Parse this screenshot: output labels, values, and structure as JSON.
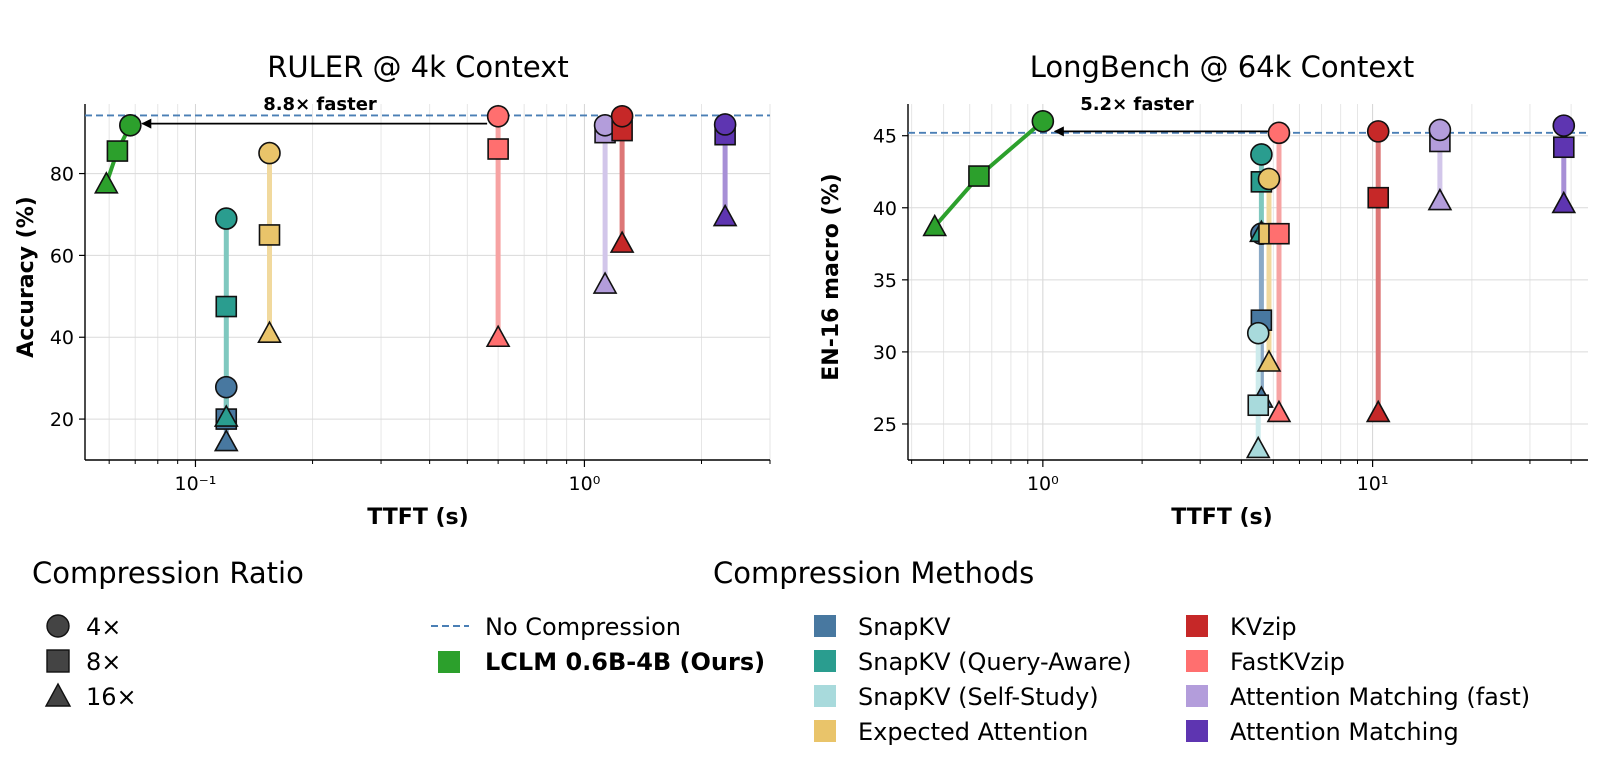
{
  "chart_data": [
    {
      "type": "scatter",
      "title": "RULER @ 4k Context",
      "xlabel": "TTFT (s)",
      "ylabel": "Accuracy (%)",
      "xscale": "log",
      "xlim": [
        0.052,
        3.0
      ],
      "ylim": [
        10,
        97
      ],
      "yticks": [
        20,
        40,
        60,
        80
      ],
      "xticks": [
        {
          "value": 0.1,
          "label": "10⁻¹"
        },
        {
          "value": 1,
          "label": "10⁰"
        }
      ],
      "grid": true,
      "baseline": 94.2,
      "annotation": {
        "text": "8.8× faster",
        "from_x": 0.6,
        "to_x": 0.068,
        "y": 92.2
      },
      "series": [
        {
          "key": "snapkv",
          "points": [
            {
              "x": 0.12,
              "y": 27.8,
              "ratio": "4x"
            },
            {
              "x": 0.12,
              "y": 20.0,
              "ratio": "8x"
            },
            {
              "x": 0.12,
              "y": 14.5,
              "ratio": "16x"
            }
          ]
        },
        {
          "key": "snapkv_qa",
          "points": [
            {
              "x": 0.12,
              "y": 69.0,
              "ratio": "4x"
            },
            {
              "x": 0.12,
              "y": 47.5,
              "ratio": "8x"
            },
            {
              "x": 0.12,
              "y": 20.5,
              "ratio": "16x"
            }
          ]
        },
        {
          "key": "expected",
          "points": [
            {
              "x": 0.155,
              "y": 85.0,
              "ratio": "4x"
            },
            {
              "x": 0.155,
              "y": 65.0,
              "ratio": "8x"
            },
            {
              "x": 0.155,
              "y": 41.0,
              "ratio": "16x"
            }
          ]
        },
        {
          "key": "fastkvzip",
          "points": [
            {
              "x": 0.6,
              "y": 94.0,
              "ratio": "4x"
            },
            {
              "x": 0.6,
              "y": 86.0,
              "ratio": "8x"
            },
            {
              "x": 0.6,
              "y": 40.0,
              "ratio": "16x"
            }
          ]
        },
        {
          "key": "am_fast",
          "points": [
            {
              "x": 1.13,
              "y": 91.8,
              "ratio": "4x"
            },
            {
              "x": 1.13,
              "y": 90.0,
              "ratio": "8x"
            },
            {
              "x": 1.13,
              "y": 53.0,
              "ratio": "16x"
            }
          ]
        },
        {
          "key": "kvzip",
          "points": [
            {
              "x": 1.25,
              "y": 94.0,
              "ratio": "4x"
            },
            {
              "x": 1.25,
              "y": 90.5,
              "ratio": "8x"
            },
            {
              "x": 1.25,
              "y": 63.0,
              "ratio": "16x"
            }
          ]
        },
        {
          "key": "am",
          "points": [
            {
              "x": 2.3,
              "y": 92.0,
              "ratio": "4x"
            },
            {
              "x": 2.3,
              "y": 89.5,
              "ratio": "8x"
            },
            {
              "x": 2.3,
              "y": 69.5,
              "ratio": "16x"
            }
          ]
        },
        {
          "key": "lclm",
          "points": [
            {
              "x": 0.068,
              "y": 91.8,
              "ratio": "4x"
            },
            {
              "x": 0.063,
              "y": 85.5,
              "ratio": "8x"
            },
            {
              "x": 0.059,
              "y": 77.5,
              "ratio": "16x"
            }
          ]
        }
      ]
    },
    {
      "type": "scatter",
      "title": "LongBench @ 64k Context",
      "xlabel": "TTFT (s)",
      "ylabel": "EN-16 macro (%)",
      "xscale": "log",
      "xlim": [
        0.39,
        45
      ],
      "ylim": [
        22.5,
        47.2
      ],
      "yticks": [
        25,
        30,
        35,
        40,
        45
      ],
      "xticks": [
        {
          "value": 1,
          "label": "10⁰"
        },
        {
          "value": 10,
          "label": "10¹"
        }
      ],
      "grid": true,
      "baseline": 45.2,
      "annotation": {
        "text": "5.2× faster",
        "from_x": 5.2,
        "to_x": 1.0,
        "y": 45.3
      },
      "series": [
        {
          "key": "snapkv",
          "points": [
            {
              "x": 4.6,
              "y": 38.2,
              "ratio": "4x"
            },
            {
              "x": 4.6,
              "y": 32.2,
              "ratio": "8x"
            },
            {
              "x": 4.6,
              "y": 26.8,
              "ratio": "16x"
            }
          ]
        },
        {
          "key": "snapkv_qa",
          "points": [
            {
              "x": 4.6,
              "y": 43.7,
              "ratio": "4x"
            },
            {
              "x": 4.6,
              "y": 41.8,
              "ratio": "8x"
            },
            {
              "x": 4.6,
              "y": 38.3,
              "ratio": "16x"
            }
          ]
        },
        {
          "key": "snapkv_ss",
          "points": [
            {
              "x": 4.5,
              "y": 31.3,
              "ratio": "4x"
            },
            {
              "x": 4.5,
              "y": 26.3,
              "ratio": "8x"
            },
            {
              "x": 4.5,
              "y": 23.3,
              "ratio": "16x"
            }
          ]
        },
        {
          "key": "expected",
          "points": [
            {
              "x": 4.85,
              "y": 42.0,
              "ratio": "4x"
            },
            {
              "x": 4.85,
              "y": 38.2,
              "ratio": "8x"
            },
            {
              "x": 4.85,
              "y": 29.3,
              "ratio": "16x"
            }
          ]
        },
        {
          "key": "fastkvzip",
          "points": [
            {
              "x": 5.2,
              "y": 45.2,
              "ratio": "4x"
            },
            {
              "x": 5.2,
              "y": 38.2,
              "ratio": "8x"
            },
            {
              "x": 5.2,
              "y": 25.8,
              "ratio": "16x"
            }
          ]
        },
        {
          "key": "kvzip",
          "points": [
            {
              "x": 10.4,
              "y": 45.3,
              "ratio": "4x"
            },
            {
              "x": 10.4,
              "y": 40.7,
              "ratio": "8x"
            },
            {
              "x": 10.4,
              "y": 25.8,
              "ratio": "16x"
            }
          ]
        },
        {
          "key": "am_fast",
          "points": [
            {
              "x": 16.0,
              "y": 45.4,
              "ratio": "4x"
            },
            {
              "x": 16.0,
              "y": 44.6,
              "ratio": "8x"
            },
            {
              "x": 16.0,
              "y": 40.5,
              "ratio": "16x"
            }
          ]
        },
        {
          "key": "am",
          "points": [
            {
              "x": 38.0,
              "y": 45.7,
              "ratio": "4x"
            },
            {
              "x": 38.0,
              "y": 44.2,
              "ratio": "8x"
            },
            {
              "x": 38.0,
              "y": 40.3,
              "ratio": "16x"
            }
          ]
        },
        {
          "key": "lclm",
          "points": [
            {
              "x": 1.0,
              "y": 46.0,
              "ratio": "4x"
            },
            {
              "x": 0.64,
              "y": 42.2,
              "ratio": "8x"
            },
            {
              "x": 0.47,
              "y": 38.7,
              "ratio": "16x"
            }
          ]
        }
      ]
    }
  ],
  "methods": {
    "snapkv": {
      "name": "SnapKV",
      "color": "#4878a0",
      "line": "#8aa9c6"
    },
    "snapkv_qa": {
      "name": "SnapKV (Query-Aware)",
      "color": "#2a9d8f",
      "line": "#7fc8bf"
    },
    "snapkv_ss": {
      "name": "SnapKV (Self-Study)",
      "color": "#a8dadc",
      "line": "#cdebec"
    },
    "expected": {
      "name": "Expected Attention",
      "color": "#e9c46a",
      "line": "#f1d99d"
    },
    "kvzip": {
      "name": "KVzip",
      "color": "#c62828",
      "line": "#dd7777"
    },
    "fastkvzip": {
      "name": "FastKVzip",
      "color": "#ff6f6f",
      "line": "#f7a3a3"
    },
    "am_fast": {
      "name": "Attention Matching (fast)",
      "color": "#b39ddb",
      "line": "#d2c6ea"
    },
    "am": {
      "name": "Attention Matching",
      "color": "#5e35b1",
      "line": "#a78fd6"
    },
    "lclm": {
      "name": "LCLM 0.6B-4B (Ours)",
      "color": "#2ca02c",
      "line": "#2ca02c"
    }
  },
  "legend": {
    "ratio_title": "Compression Ratio",
    "ratios": [
      {
        "marker": "circle",
        "label": "4×"
      },
      {
        "marker": "square",
        "label": "8×"
      },
      {
        "marker": "triangle",
        "label": "16×"
      }
    ],
    "methods_title": "Compression Methods",
    "baseline_label": "No Compression",
    "baseline_color": "#4a7fb5",
    "ours_label": "LCLM 0.6B-4B (Ours)",
    "col1": [
      "snapkv",
      "snapkv_qa",
      "snapkv_ss",
      "expected"
    ],
    "col2": [
      "kvzip",
      "fastkvzip",
      "am_fast",
      "am"
    ]
  }
}
